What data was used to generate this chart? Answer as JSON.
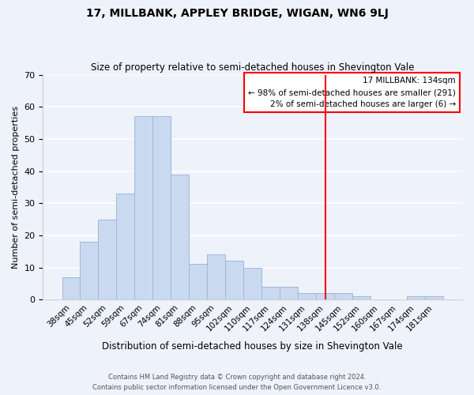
{
  "title": "17, MILLBANK, APPLEY BRIDGE, WIGAN, WN6 9LJ",
  "subtitle": "Size of property relative to semi-detached houses in Shevington Vale",
  "xlabel": "Distribution of semi-detached houses by size in Shevington Vale",
  "ylabel": "Number of semi-detached properties",
  "bar_labels": [
    "38sqm",
    "45sqm",
    "52sqm",
    "59sqm",
    "67sqm",
    "74sqm",
    "81sqm",
    "88sqm",
    "95sqm",
    "102sqm",
    "110sqm",
    "117sqm",
    "124sqm",
    "131sqm",
    "138sqm",
    "145sqm",
    "152sqm",
    "160sqm",
    "167sqm",
    "174sqm",
    "181sqm"
  ],
  "bar_values": [
    7,
    18,
    25,
    33,
    57,
    57,
    39,
    11,
    14,
    12,
    10,
    4,
    4,
    2,
    2,
    2,
    1,
    0,
    0,
    1,
    1
  ],
  "bar_color": "#c9d9f0",
  "bar_edge_color": "#a0b8d8",
  "background_color": "#eef2fb",
  "grid_color": "#ffffff",
  "vline_x_index": 14.0,
  "vline_color": "red",
  "ylim": [
    0,
    70
  ],
  "yticks": [
    0,
    10,
    20,
    30,
    40,
    50,
    60,
    70
  ],
  "annotation_title": "17 MILLBANK: 134sqm",
  "annotation_line1": "← 98% of semi-detached houses are smaller (291)",
  "annotation_line2": "2% of semi-detached houses are larger (6) →",
  "footnote1": "Contains HM Land Registry data © Crown copyright and database right 2024.",
  "footnote2": "Contains public sector information licensed under the Open Government Licence v3.0."
}
